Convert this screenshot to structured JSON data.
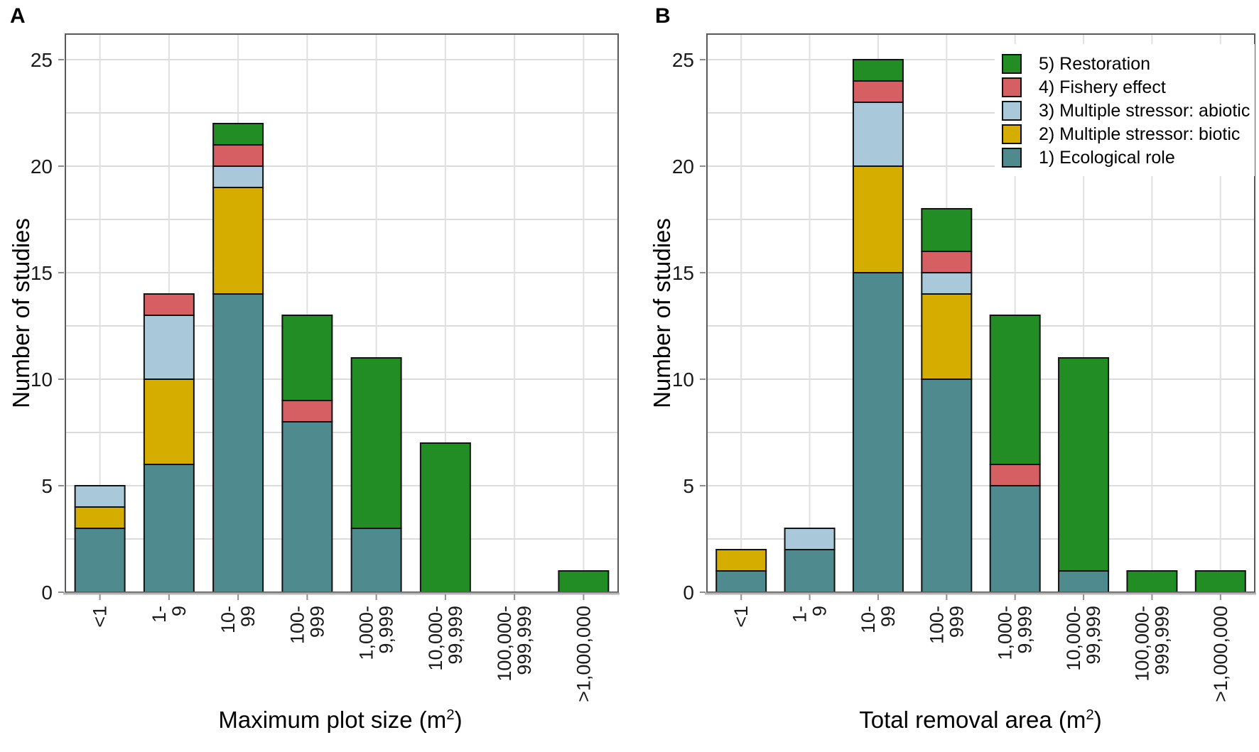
{
  "figure": {
    "description": "Two-panel stacked bar chart of number of studies by plot size class and study category"
  },
  "legend": {
    "position": "top-right inside panel B",
    "items": [
      {
        "label": "5) Restoration",
        "color": "#228c25"
      },
      {
        "label": "4) Fishery effect",
        "color": "#d65f63"
      },
      {
        "label": "3) Multiple stressor: abiotic",
        "color": "#a9c9da"
      },
      {
        "label": "2) Multiple stressor: biotic",
        "color": "#d4ad00"
      },
      {
        "label": "1) Ecological role",
        "color": "#4f8a8e"
      }
    ]
  },
  "chart_data": [
    {
      "type": "bar",
      "stacked": true,
      "title": "A",
      "xlabel": "Maximum plot size (m²)",
      "ylabel": "Number of studies",
      "categories": [
        "<1",
        "1-\n9",
        "10-\n99",
        "100-\n999",
        "1,000-\n9,999",
        "10,000-\n99,999",
        "100,000-\n999,999",
        ">1,000,000"
      ],
      "series": [
        {
          "name": "1) Ecological role",
          "color": "#4f8a8e",
          "values": [
            3,
            6,
            14,
            8,
            3,
            0,
            0,
            0
          ]
        },
        {
          "name": "2) Multiple stressor: biotic",
          "color": "#d4ad00",
          "values": [
            1,
            4,
            5,
            0,
            0,
            0,
            0,
            0
          ]
        },
        {
          "name": "3) Multiple stressor: abiotic",
          "color": "#a9c9da",
          "values": [
            1,
            3,
            1,
            0,
            0,
            0,
            0,
            0
          ]
        },
        {
          "name": "4) Fishery effect",
          "color": "#d65f63",
          "values": [
            0,
            1,
            1,
            1,
            0,
            0,
            0,
            0
          ]
        },
        {
          "name": "5) Restoration",
          "color": "#228c25",
          "values": [
            0,
            0,
            1,
            4,
            8,
            7,
            0,
            1
          ]
        }
      ],
      "bar_totals": [
        5,
        14,
        22,
        13,
        11,
        7,
        0,
        1
      ],
      "ylim": [
        0,
        26.2
      ],
      "yticks": [
        0,
        5,
        10,
        15,
        20,
        25
      ],
      "grid_step": 2.5,
      "grid": true,
      "legend_position": "none"
    },
    {
      "type": "bar",
      "stacked": true,
      "title": "B",
      "xlabel": "Total removal area (m²)",
      "ylabel": "Number of studies",
      "categories": [
        "<1",
        "1-\n9",
        "10-\n99",
        "100-\n999",
        "1,000-\n9,999",
        "10,000-\n99,999",
        "100,000-\n999,999",
        ">1,000,000"
      ],
      "series": [
        {
          "name": "1) Ecological role",
          "color": "#4f8a8e",
          "values": [
            1,
            2,
            15,
            10,
            5,
            1,
            0,
            0
          ]
        },
        {
          "name": "2) Multiple stressor: biotic",
          "color": "#d4ad00",
          "values": [
            1,
            0,
            5,
            4,
            0,
            0,
            0,
            0
          ]
        },
        {
          "name": "3) Multiple stressor: abiotic",
          "color": "#a9c9da",
          "values": [
            0,
            1,
            3,
            1,
            0,
            0,
            0,
            0
          ]
        },
        {
          "name": "4) Fishery effect",
          "color": "#d65f63",
          "values": [
            0,
            0,
            1,
            1,
            1,
            0,
            0,
            0
          ]
        },
        {
          "name": "5) Restoration",
          "color": "#228c25",
          "values": [
            0,
            0,
            1,
            2,
            7,
            10,
            1,
            1
          ]
        }
      ],
      "bar_totals": [
        2,
        3,
        25,
        18,
        13,
        11,
        1,
        1
      ],
      "ylim": [
        0,
        26.2
      ],
      "yticks": [
        0,
        5,
        10,
        15,
        20,
        25
      ],
      "grid_step": 2.5,
      "grid": true,
      "legend_position": "top-right"
    }
  ]
}
